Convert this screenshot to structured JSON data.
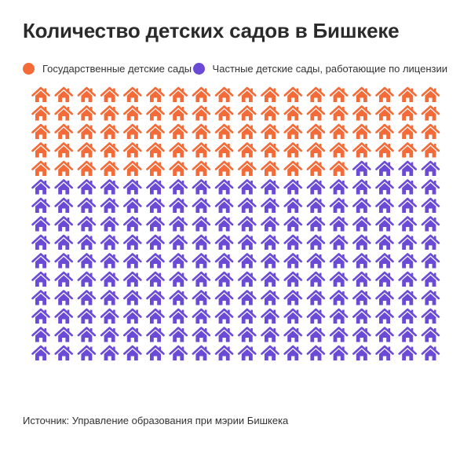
{
  "title": "Количество детских садов в Бишкеке",
  "source": "Источник: Управление образования при мэрии Бишкека",
  "icon": "house-icon",
  "colors": {
    "state": "#f26b38",
    "private": "#6b4bd6"
  },
  "chart_data": {
    "type": "pictogram",
    "title": "Количество детских садов в Бишкеке",
    "legend_position": "top",
    "per_row": 18,
    "series": [
      {
        "name": "Государственные детские сады",
        "value": 86,
        "color": "#f26b38"
      },
      {
        "name": "Частные детские сады, работающие по лицензии",
        "value": 184,
        "color": "#6b4bd6"
      }
    ]
  }
}
